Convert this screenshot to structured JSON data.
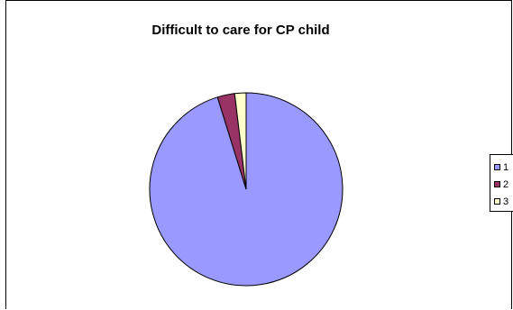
{
  "chart_data": {
    "type": "pie",
    "title": "Difficult to care for CP child",
    "categories": [
      "1",
      "2",
      "3"
    ],
    "values": [
      95.2,
      2.9,
      1.9
    ],
    "colors": [
      "#9999ff",
      "#993366",
      "#ffffcc"
    ],
    "legend_position": "right"
  }
}
